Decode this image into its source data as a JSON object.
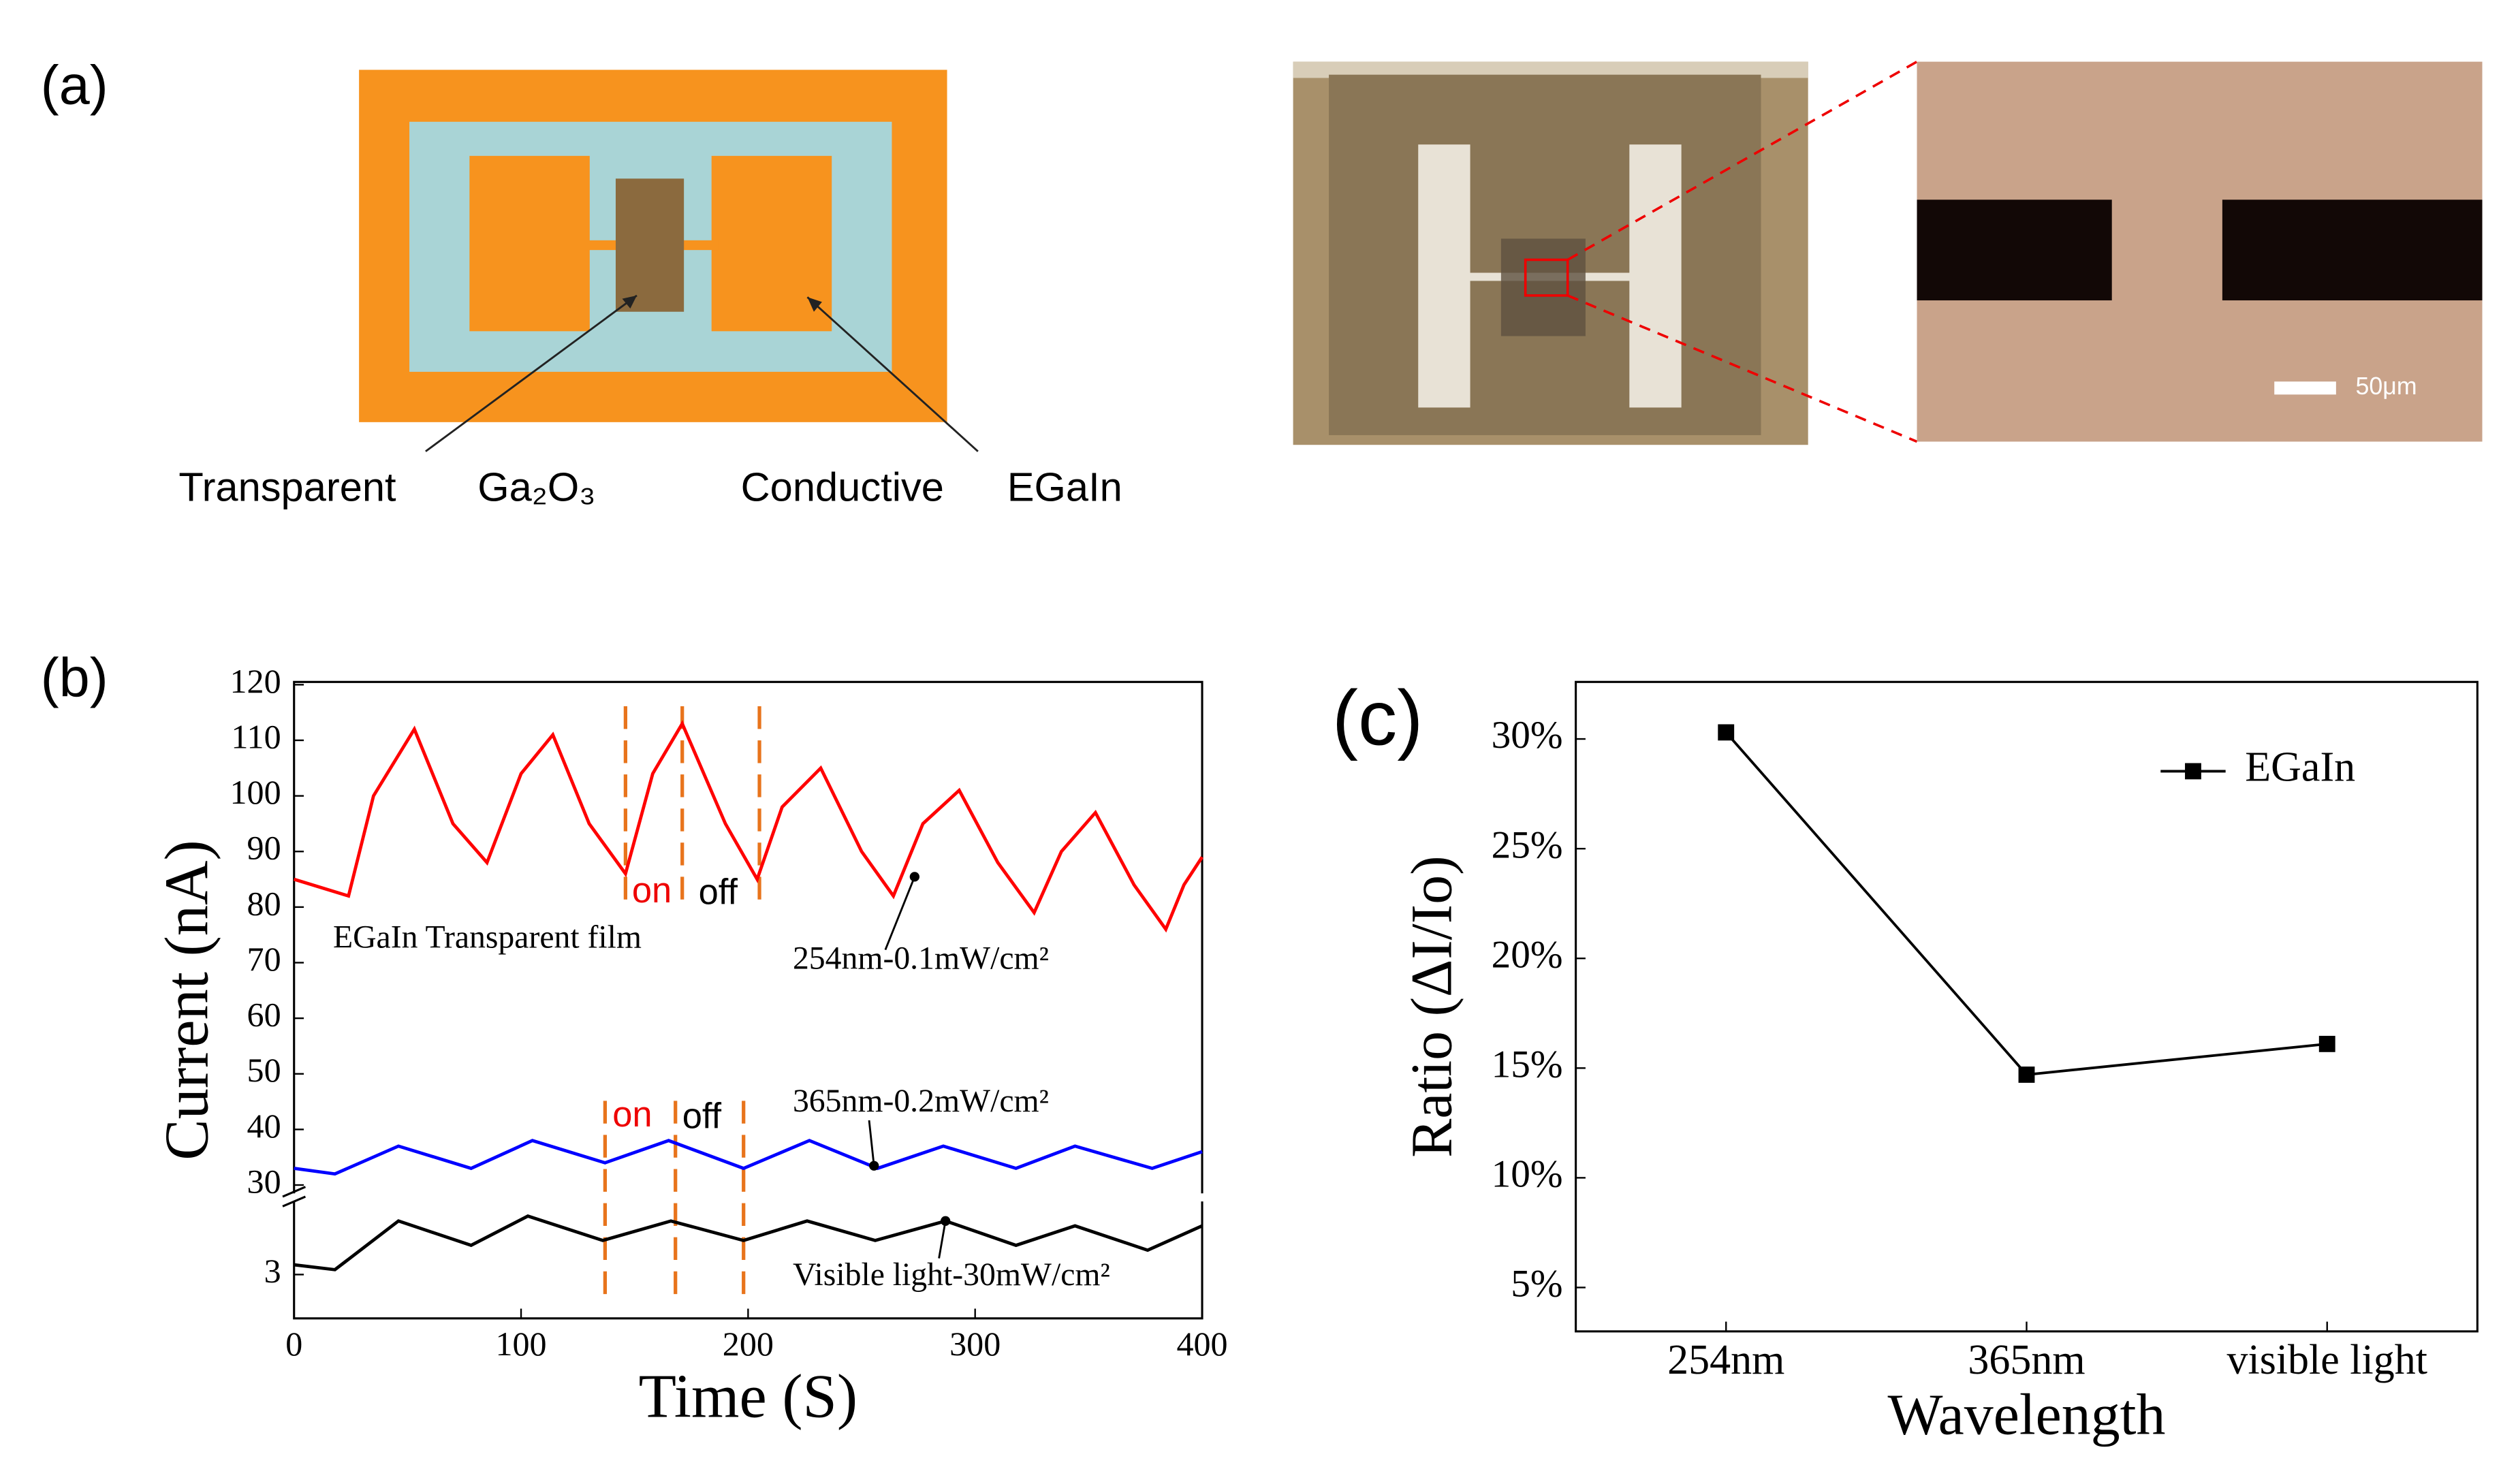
{
  "panel_a": {
    "label": "(a)",
    "callouts": [
      "Transparent",
      "Ga₂O₃",
      "Conductive",
      "EGaIn"
    ],
    "scale_bar": "50μm"
  },
  "chart_data": [
    {
      "type": "line",
      "panel_label": "(b)",
      "x_label": "Time (S)",
      "y_label": "Current (nA)",
      "xlim": [
        0,
        400
      ],
      "xticks": [
        0,
        100,
        200,
        300,
        400
      ],
      "ylim": [
        28.5,
        120.5
      ],
      "yticks": [
        30,
        40,
        50,
        60,
        70,
        80,
        90,
        100,
        110,
        120
      ],
      "y2lim": [
        2.55,
        3.75
      ],
      "y2ticks": [
        3
      ],
      "annotations": [
        "EGaIn Transparent film",
        "on",
        "off",
        "on",
        "off"
      ],
      "switch_lines_x": [
        146,
        171,
        205,
        137,
        168,
        198
      ],
      "series": [
        {
          "name": "254nm-0.1mW/cm²",
          "color": "#ff0000",
          "x": [
            0,
            24,
            35,
            53,
            70,
            85,
            100,
            114,
            130,
            146,
            158,
            171,
            190,
            204,
            215,
            232,
            250,
            264,
            277,
            293,
            310,
            326,
            338,
            353,
            370,
            384,
            392,
            400
          ],
          "values": [
            85,
            82,
            100,
            112,
            95,
            88,
            104,
            111,
            95,
            86,
            104,
            113,
            95,
            85,
            98,
            105,
            90,
            82,
            95,
            101,
            88,
            79,
            90,
            97,
            84,
            76,
            84,
            89
          ]
        },
        {
          "name": "365nm-0.2mW/cm²",
          "color": "#0000ff",
          "x": [
            0,
            18,
            46,
            78,
            105,
            137,
            165,
            198,
            227,
            257,
            286,
            318,
            344,
            378,
            400
          ],
          "values": [
            33,
            32,
            37,
            33,
            38,
            34,
            38,
            33,
            38,
            33,
            37,
            33,
            37,
            33,
            36
          ]
        },
        {
          "name": "Visible light-30mW/cm²",
          "color": "#000000",
          "axis": "y2",
          "x": [
            0,
            18,
            46,
            78,
            103,
            136,
            166,
            198,
            226,
            256,
            287,
            318,
            344,
            376,
            400
          ],
          "values": [
            3.1,
            3.05,
            3.55,
            3.3,
            3.6,
            3.35,
            3.55,
            3.35,
            3.55,
            3.35,
            3.55,
            3.3,
            3.5,
            3.25,
            3.5
          ]
        }
      ]
    },
    {
      "type": "line",
      "panel_label": "(c)",
      "x_label": "Wavelength",
      "y_label": "Ratio (ΔI/Io)",
      "categories": [
        "254nm",
        "365nm",
        "visible light"
      ],
      "ylim": [
        3,
        32.6
      ],
      "yticks": [
        {
          "value": 5,
          "label": "5%"
        },
        {
          "value": 10,
          "label": "10%"
        },
        {
          "value": 15,
          "label": "15%"
        },
        {
          "value": 20,
          "label": "20%"
        },
        {
          "value": 25,
          "label": "25%"
        },
        {
          "value": 30,
          "label": "30%"
        }
      ],
      "legend": "upper right",
      "series": [
        {
          "name": "EGaIn",
          "color": "#000000",
          "values": [
            30.3,
            14.7,
            16.1
          ]
        }
      ]
    }
  ]
}
